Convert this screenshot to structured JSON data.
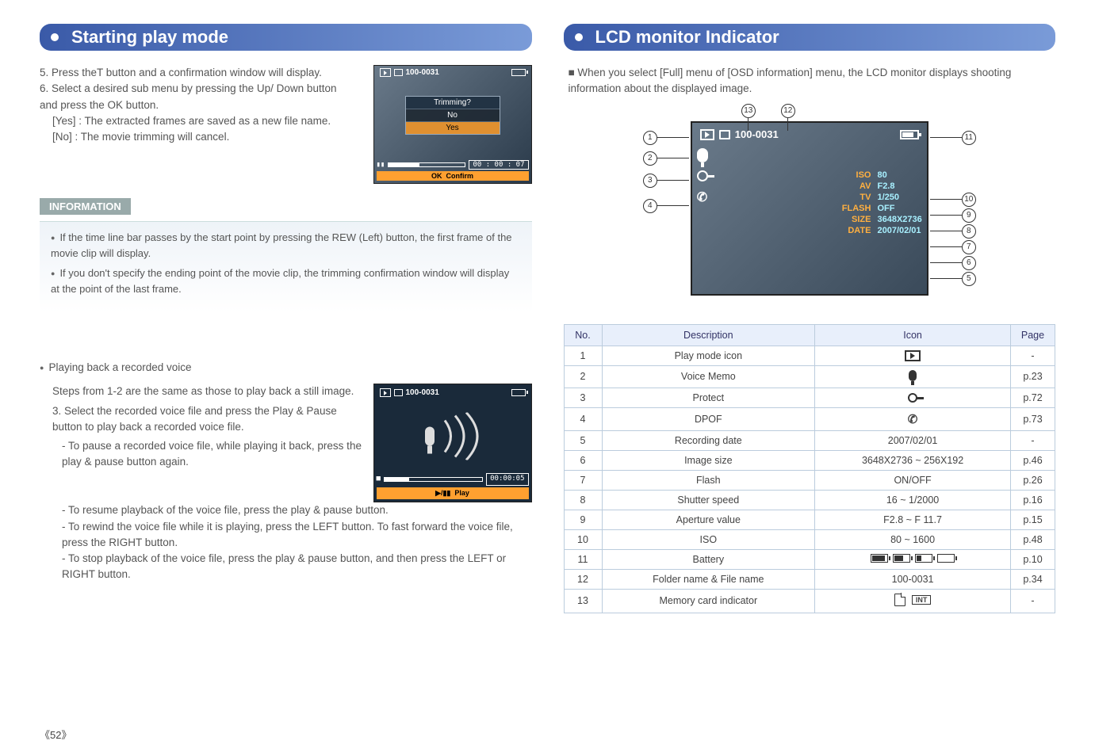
{
  "left": {
    "title": "Starting play mode",
    "step5": "5. Press theT button and a confirmation window will display.",
    "step6": "6. Select a desired sub menu by pressing the Up/ Down button and press the OK button.",
    "step6_yes": "[Yes] : The extracted frames are saved as a new file name.",
    "step6_no": "[No]   : The movie trimming will cancel.",
    "info_title": "INFORMATION",
    "info_b1": "If the time line bar passes by the start point by pressing the REW (Left) button, the first frame of the movie clip will display.",
    "info_b2": "If you don't specify the ending point of the movie clip, the trimming confirmation window will display at the point of the last frame.",
    "voice_head": "Playing back a recorded voice",
    "voice_intro": "Steps from 1-2 are the same as those to play back a still image.",
    "voice_s3": "3. Select the recorded voice file and press the Play & Pause button to play back  a recorded voice file.",
    "voice_d1": "- To pause a recorded voice file, while playing it back, press the play & pause button again.",
    "voice_d2": "- To resume playback of the voice file, press the play & pause button.",
    "voice_d3": "- To rewind the voice file while it is playing, press the LEFT button. To fast forward the voice file, press the RIGHT button.",
    "voice_d4": "- To stop playback of the voice file, press the play & pause button, and then press the LEFT or RIGHT button.",
    "trim_thumb": {
      "folder": "100-0031",
      "dialog_title": "Trimming?",
      "opt_no": "No",
      "opt_yes": "Yes",
      "timecode": "00 : 00 : 07",
      "ok_label": "OK",
      "confirm": "Confirm"
    },
    "voice_thumb": {
      "folder": "100-0031",
      "timecode": "00:00:05",
      "play_label": "Play"
    }
  },
  "right": {
    "title": "LCD  monitor Indicator",
    "intro": "When you select [Full] menu of [OSD information] menu, the LCD monitor displays shooting information about the displayed image.",
    "lcd": {
      "folder": "100-0031",
      "rows": [
        {
          "lbl": "ISO",
          "val": "80"
        },
        {
          "lbl": "AV",
          "val": "F2.8"
        },
        {
          "lbl": "TV",
          "val": "1/250"
        },
        {
          "lbl": "FLASH",
          "val": "OFF"
        },
        {
          "lbl": "SIZE",
          "val": "3648X2736"
        },
        {
          "lbl": "DATE",
          "val": "2007/02/01"
        }
      ]
    },
    "table": {
      "headers": [
        "No.",
        "Description",
        "Icon",
        "Page"
      ],
      "rows": [
        {
          "no": "1",
          "desc": "Play mode icon",
          "icon": "play",
          "page": "-"
        },
        {
          "no": "2",
          "desc": "Voice Memo",
          "icon": "mic",
          "page": "p.23"
        },
        {
          "no": "3",
          "desc": "Protect",
          "icon": "key",
          "page": "p.72"
        },
        {
          "no": "4",
          "desc": "DPOF",
          "icon": "dpof",
          "page": "p.73"
        },
        {
          "no": "5",
          "desc": "Recording date",
          "icon_text": "2007/02/01",
          "page": "-"
        },
        {
          "no": "6",
          "desc": "Image size",
          "icon_text": "3648X2736 ~ 256X192",
          "page": "p.46"
        },
        {
          "no": "7",
          "desc": "Flash",
          "icon_text": "ON/OFF",
          "page": "p.26"
        },
        {
          "no": "8",
          "desc": "Shutter speed",
          "icon_text": "16 ~ 1/2000",
          "page": "p.16"
        },
        {
          "no": "9",
          "desc": "Aperture value",
          "icon_text": "F2.8 ~  F 11.7",
          "page": "p.15"
        },
        {
          "no": "10",
          "desc": "ISO",
          "icon_text": "80 ~ 1600",
          "page": "p.48"
        },
        {
          "no": "11",
          "desc": "Battery",
          "icon": "batt",
          "page": "p.10"
        },
        {
          "no": "12",
          "desc": "Folder name & File name",
          "icon_text": "100-0031",
          "page": "p.34"
        },
        {
          "no": "13",
          "desc": "Memory card indicator",
          "icon": "mem",
          "page": "-"
        }
      ]
    }
  },
  "page_number": "52"
}
